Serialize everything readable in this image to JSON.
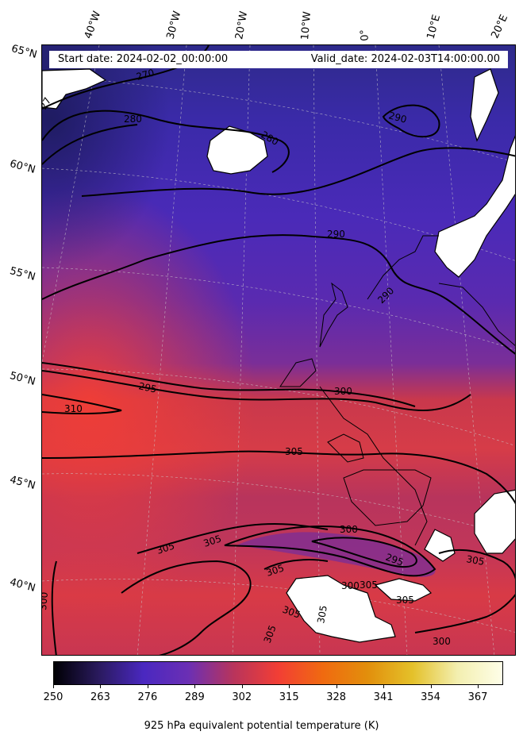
{
  "header": {
    "start_date": "Start date: 2024-02-02_00:00:00",
    "valid_date": "Valid_date: 2024-02-03T14:00:00.00"
  },
  "longitude_labels": [
    "40°W",
    "30°W",
    "20°W",
    "10°W",
    "0°",
    "10°E",
    "20°E"
  ],
  "latitude_labels": [
    "65°N",
    "60°N",
    "55°N",
    "50°N",
    "45°N",
    "40°N"
  ],
  "contour_labels": [
    "270",
    "27",
    "280",
    "280",
    "290",
    "290",
    "290",
    "295",
    "300",
    "310",
    "305",
    "300",
    "295",
    "305",
    "305",
    "305",
    "305",
    "305",
    "305",
    "300",
    "305",
    "300",
    "305",
    "305",
    "300"
  ],
  "colorbar": {
    "ticks": [
      "250",
      "263",
      "276",
      "289",
      "302",
      "315",
      "328",
      "341",
      "354",
      "367"
    ],
    "label": "925 hPa equivalent potential temperature (K)",
    "colors": [
      "#000004",
      "#2a1a5e",
      "#4a28c0",
      "#6b2fb4",
      "#b8345c",
      "#f23e35",
      "#f06a10",
      "#e28f0c",
      "#e4c12a",
      "#f3efb0",
      "#fefee8"
    ]
  }
}
